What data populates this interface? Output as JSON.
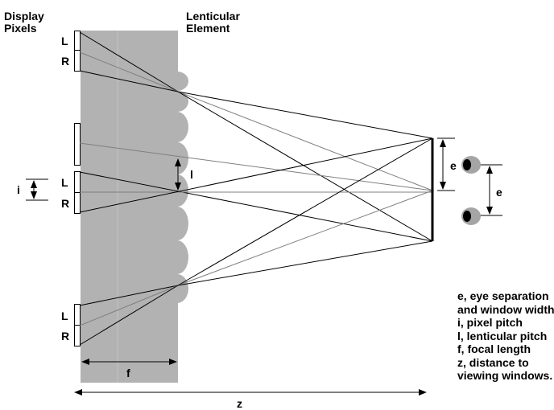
{
  "labels": {
    "display_pixels_line1": "Display",
    "display_pixels_line2": "Pixels",
    "lenticular_line1": "Lenticular",
    "lenticular_line2": "Element",
    "pixel_top_left": "L",
    "pixel_top_right": "R",
    "pixel_mid_left": "L",
    "pixel_mid_right": "R",
    "pixel_bottom_left": "L",
    "pixel_bottom_right": "R",
    "pixel_pitch": "i",
    "lenticular_pitch": "l",
    "window_eye_separation": "e",
    "eye_separation": "e",
    "focal_length": "f",
    "distance": "z"
  },
  "legend": [
    "e, eye separation",
    "and window width",
    "i, pixel pitch",
    "l, lenticular pitch",
    "f, focal length",
    "z, distance to",
    "viewing windows."
  ],
  "colors": {
    "substrate": "#b2b2b2",
    "ray_black": "#000000",
    "ray_gray": "#7f7f7f",
    "eye": "#a5a5a5"
  }
}
